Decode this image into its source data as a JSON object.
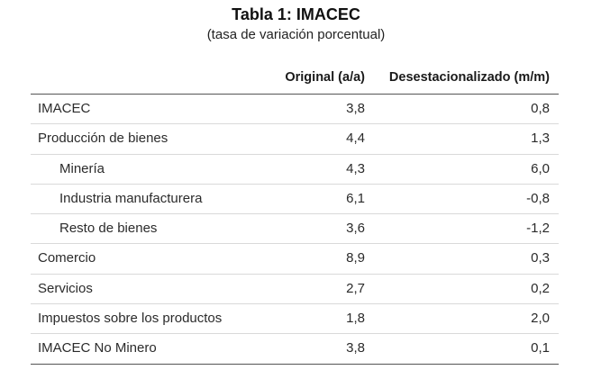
{
  "title": "Tabla 1:  IMACEC",
  "subtitle": "(tasa de variación porcentual)",
  "columns": {
    "original": "Original (a/a)",
    "desestacionalizado": "Desestacionalizado (m/m)"
  },
  "rows": [
    {
      "label": "IMACEC",
      "original": "3,8",
      "desestacionalizado": "0,8"
    },
    {
      "label": "Producción de bienes",
      "original": "4,4",
      "desestacionalizado": "1,3"
    },
    {
      "label": "Minería",
      "original": "4,3",
      "desestacionalizado": "6,0"
    },
    {
      "label": "Industria manufacturera",
      "original": "6,1",
      "desestacionalizado": "-0,8"
    },
    {
      "label": "Resto de bienes",
      "original": "3,6",
      "desestacionalizado": "-1,2"
    },
    {
      "label": "Comercio",
      "original": "8,9",
      "desestacionalizado": "0,3"
    },
    {
      "label": "Servicios",
      "original": "2,7",
      "desestacionalizado": "0,2"
    },
    {
      "label": "Impuestos sobre los productos",
      "original": "1,8",
      "desestacionalizado": "2,0"
    },
    {
      "label": "IMACEC No Minero",
      "original": "3,8",
      "desestacionalizado": "0,1"
    }
  ]
}
